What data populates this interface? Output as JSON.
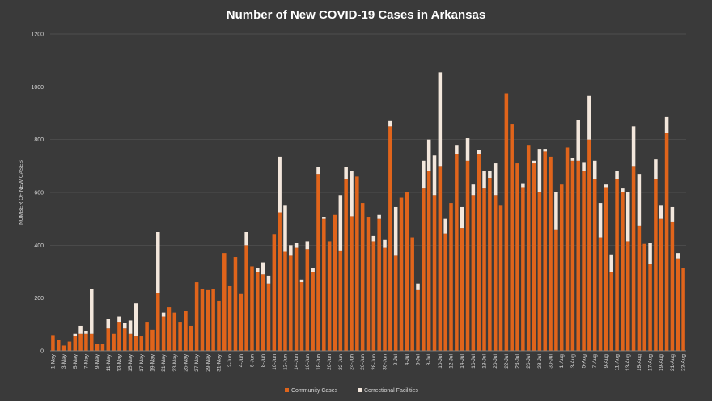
{
  "chart_data": {
    "type": "stacked_bar",
    "title": "Number of New COVID-19 Cases in Arkansas",
    "y_axis_label": "NUMBER OF NEW CASES",
    "categories": [
      "1-May",
      null,
      "3-May",
      null,
      "5-May",
      null,
      "7-May",
      null,
      "9-May",
      null,
      "11-May",
      null,
      "13-May",
      null,
      "15-May",
      null,
      "17-May",
      null,
      "19-May",
      null,
      "21-May",
      null,
      "23-May",
      null,
      "25-May",
      null,
      "27-May",
      null,
      "29-May",
      null,
      "31-May",
      null,
      "2-Jun",
      null,
      "4-Jun",
      null,
      "6-Jun",
      null,
      "8-Jun",
      null,
      "10-Jun",
      null,
      "12-Jun",
      null,
      "14-Jun",
      null,
      "16-Jun",
      null,
      "18-Jun",
      null,
      "20-Jun",
      null,
      "22-Jun",
      null,
      "24-Jun",
      null,
      "26-Jun",
      null,
      "28-Jun",
      null,
      "30-Jun",
      null,
      "2-Jul",
      null,
      "4-Jul",
      null,
      "6-Jul",
      null,
      "8-Jul",
      null,
      "10-Jul",
      null,
      "12-Jul",
      null,
      "14-Jul",
      null,
      "16-Jul",
      null,
      "18-Jul",
      null,
      "20-Jul",
      null,
      "22-Jul",
      null,
      "24-Jul",
      null,
      "26-Jul",
      null,
      "28-Jul",
      null,
      "30-Jul",
      null,
      "1-Aug",
      null,
      "3-Aug",
      null,
      "5-Aug",
      null,
      "7-Aug",
      null,
      "9-Aug",
      null,
      "11-Aug",
      null,
      "13-Aug",
      null,
      "15-Aug",
      null,
      "17-Aug",
      null,
      "19-Aug",
      null,
      "21-Aug",
      null,
      "23-Aug"
    ],
    "series": [
      {
        "name": "Community Cases",
        "color": "#e0641b",
        "values": [
          60,
          40,
          20,
          35,
          55,
          65,
          65,
          65,
          25,
          25,
          85,
          65,
          110,
          85,
          65,
          55,
          55,
          110,
          80,
          220,
          130,
          165,
          145,
          110,
          150,
          95,
          260,
          235,
          230,
          235,
          190,
          370,
          245,
          355,
          215,
          400,
          320,
          300,
          290,
          255,
          440,
          525,
          375,
          360,
          390,
          260,
          385,
          300,
          670,
          500,
          415,
          515,
          380,
          650,
          510,
          660,
          560,
          505,
          415,
          500,
          390,
          850,
          360,
          580,
          600,
          430,
          230,
          615,
          680,
          590,
          700,
          445,
          560,
          745,
          465,
          720,
          590,
          745,
          615,
          655,
          590,
          550,
          975,
          860,
          710,
          620,
          780,
          710,
          600,
          755,
          735,
          460,
          630,
          770,
          720,
          720,
          680,
          800,
          650,
          430,
          620,
          300,
          650,
          600,
          415,
          700,
          475,
          405,
          330,
          650,
          500,
          825,
          490,
          350,
          315
        ]
      },
      {
        "name": "Correctional Facilities",
        "color": "#f3e7dc",
        "values": [
          0,
          0,
          0,
          0,
          10,
          30,
          10,
          170,
          0,
          0,
          35,
          0,
          20,
          20,
          50,
          125,
          0,
          0,
          0,
          230,
          15,
          0,
          0,
          0,
          0,
          0,
          0,
          0,
          0,
          0,
          0,
          0,
          0,
          0,
          0,
          50,
          0,
          15,
          45,
          30,
          0,
          210,
          175,
          40,
          20,
          10,
          30,
          15,
          25,
          5,
          0,
          0,
          210,
          45,
          170,
          0,
          0,
          0,
          20,
          15,
          30,
          20,
          185,
          0,
          0,
          0,
          25,
          105,
          120,
          150,
          355,
          55,
          0,
          35,
          80,
          85,
          40,
          15,
          65,
          25,
          120,
          0,
          0,
          0,
          0,
          15,
          0,
          10,
          165,
          10,
          0,
          140,
          0,
          0,
          10,
          155,
          35,
          165,
          70,
          130,
          10,
          65,
          30,
          15,
          185,
          150,
          195,
          0,
          80,
          75,
          50,
          60,
          55,
          20,
          0
        ]
      }
    ],
    "ylim": [
      0,
      1200
    ],
    "yticks": [
      0,
      200,
      400,
      600,
      800,
      1000,
      1200
    ],
    "grid": true,
    "legend": "bottom"
  }
}
